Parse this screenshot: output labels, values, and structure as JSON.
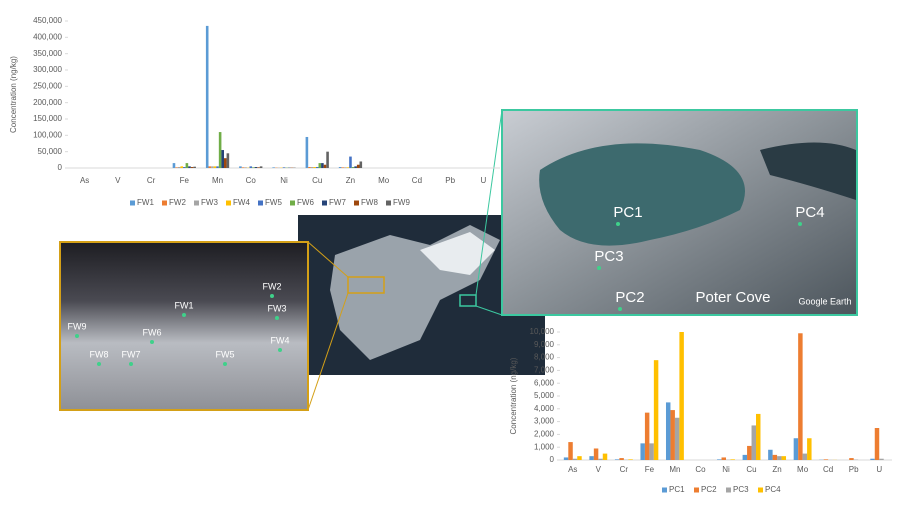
{
  "chart_data": [
    {
      "type": "bar",
      "y_label": "Concentration (ng/kg)",
      "categories": [
        "As",
        "V",
        "Cr",
        "Fe",
        "Mn",
        "Co",
        "Ni",
        "Cu",
        "Zn",
        "Mo",
        "Cd",
        "Pb",
        "U"
      ],
      "ylim": [
        0,
        450000
      ],
      "yticks": [
        0,
        {
          "value": 50000,
          "label": "50,000"
        },
        {
          "value": 100000,
          "label": "100,000"
        },
        {
          "value": 150000,
          "label": "150,000"
        },
        {
          "value": 200000,
          "label": "200,000"
        },
        {
          "value": 250000,
          "label": "250,000"
        },
        {
          "value": 300000,
          "label": "300,000"
        },
        {
          "value": 350000,
          "label": "350,000"
        },
        {
          "value": 400000,
          "label": "400,000"
        },
        {
          "value": 450000,
          "label": "450,000"
        }
      ],
      "series": [
        {
          "name": "FW1",
          "color": "#5b9bd5",
          "values": [
            0,
            0,
            0,
            15000,
            435000,
            5000,
            2000,
            95000,
            3000,
            0,
            0,
            0,
            0
          ]
        },
        {
          "name": "FW2",
          "color": "#ed7d31",
          "values": [
            0,
            0,
            0,
            2000,
            5000,
            2000,
            1000,
            3000,
            2000,
            0,
            0,
            0,
            0
          ]
        },
        {
          "name": "FW3",
          "color": "#a5a5a5",
          "values": [
            0,
            0,
            0,
            3000,
            5000,
            2000,
            1000,
            3000,
            2000,
            0,
            0,
            0,
            0
          ]
        },
        {
          "name": "FW4",
          "color": "#ffc000",
          "values": [
            0,
            0,
            0,
            5000,
            5000,
            1000,
            1000,
            3000,
            2000,
            0,
            0,
            0,
            0
          ]
        },
        {
          "name": "FW5",
          "color": "#4472c4",
          "values": [
            0,
            0,
            0,
            3000,
            5000,
            5000,
            2000,
            3000,
            35000,
            0,
            0,
            0,
            0
          ]
        },
        {
          "name": "FW6",
          "color": "#70ad47",
          "values": [
            0,
            0,
            0,
            15000,
            110000,
            2000,
            1000,
            15000,
            3000,
            0,
            0,
            0,
            0
          ]
        },
        {
          "name": "FW7",
          "color": "#264478",
          "values": [
            0,
            0,
            0,
            5000,
            55000,
            3000,
            1000,
            15000,
            5000,
            0,
            0,
            0,
            0
          ]
        },
        {
          "name": "FW8",
          "color": "#9e480e",
          "values": [
            0,
            0,
            0,
            3000,
            30000,
            2000,
            1000,
            10000,
            10000,
            0,
            0,
            0,
            0
          ]
        },
        {
          "name": "FW9",
          "color": "#636363",
          "values": [
            0,
            0,
            0,
            4000,
            45000,
            5000,
            1000,
            50000,
            20000,
            0,
            0,
            0,
            0
          ]
        }
      ]
    },
    {
      "type": "bar",
      "y_label": "Concentration (ng/kg)",
      "categories": [
        "As",
        "V",
        "Cr",
        "Fe",
        "Mn",
        "Co",
        "Ni",
        "Cu",
        "Zn",
        "Mo",
        "Cd",
        "Pb",
        "U"
      ],
      "ylim": [
        0,
        10000
      ],
      "yticks": [
        0,
        {
          "value": 1000,
          "label": "1,000"
        },
        {
          "value": 2000,
          "label": "2,000"
        },
        {
          "value": 3000,
          "label": "3,000"
        },
        {
          "value": 4000,
          "label": "4,000"
        },
        {
          "value": 5000,
          "label": "5,000"
        },
        {
          "value": 6000,
          "label": "6,000"
        },
        {
          "value": 7000,
          "label": "7,000"
        },
        {
          "value": 8000,
          "label": "8,000"
        },
        {
          "value": 9000,
          "label": "9,000"
        },
        {
          "value": 10000,
          "label": "10,000"
        }
      ],
      "series": [
        {
          "name": "PC1",
          "color": "#5b9bd5",
          "values": [
            200,
            300,
            50,
            1300,
            4500,
            0,
            50,
            400,
            800,
            1700,
            20,
            0,
            100
          ]
        },
        {
          "name": "PC2",
          "color": "#ed7d31",
          "values": [
            1400,
            900,
            150,
            3700,
            3900,
            0,
            200,
            1100,
            400,
            9900,
            50,
            150,
            2500
          ]
        },
        {
          "name": "PC3",
          "color": "#a5a5a5",
          "values": [
            100,
            100,
            20,
            1300,
            3300,
            0,
            20,
            2700,
            300,
            500,
            10,
            30,
            100
          ]
        },
        {
          "name": "PC4",
          "color": "#ffc000",
          "values": [
            300,
            500,
            50,
            7800,
            10000,
            0,
            50,
            3600,
            300,
            1700,
            10,
            0,
            0
          ]
        }
      ]
    }
  ],
  "photos": {
    "fw_labels": [
      "FW2",
      "FW1",
      "FW3",
      "FW9",
      "FW6",
      "FW4",
      "FW8",
      "FW7",
      "FW5"
    ],
    "pc_labels": [
      "PC1",
      "PC4",
      "PC3",
      "PC2"
    ],
    "place": "Poter Cove",
    "credit": "Google Earth"
  }
}
